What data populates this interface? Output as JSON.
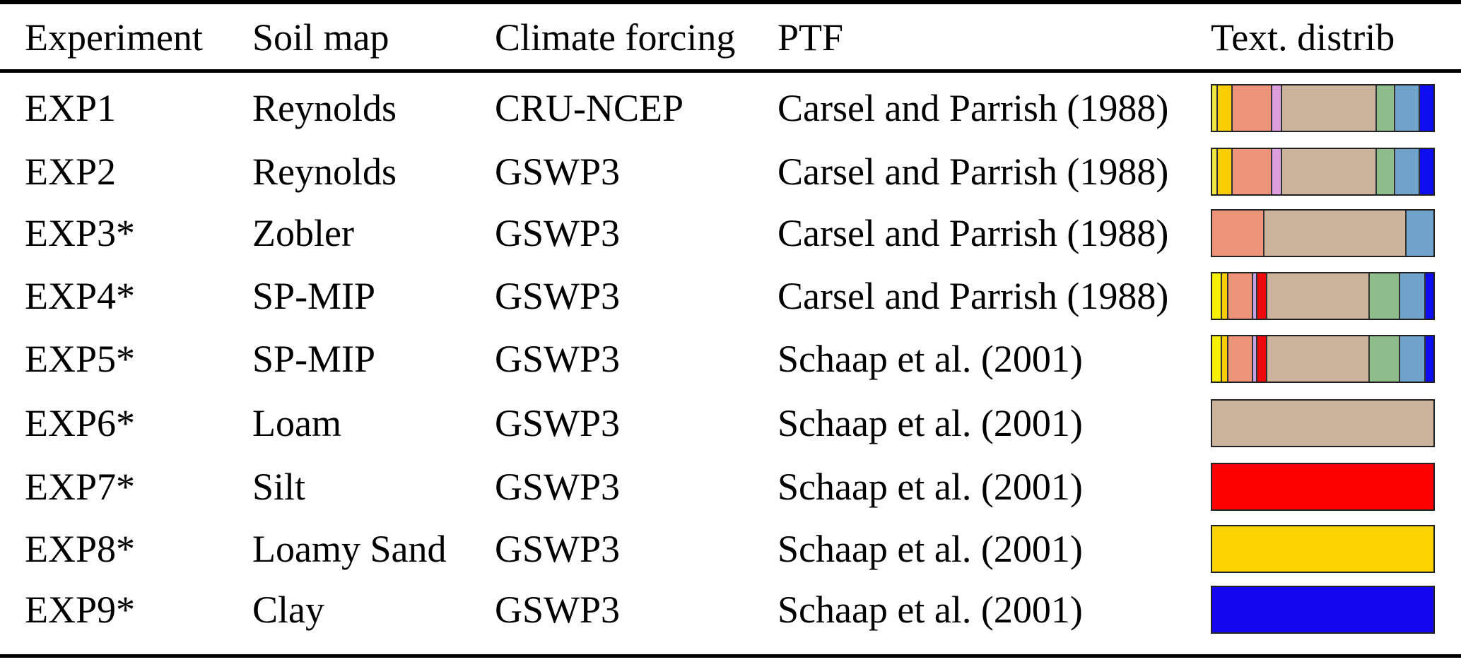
{
  "header": {
    "experiment": "Experiment",
    "soil_map": "Soil map",
    "climate_forcing": "Climate forcing",
    "ptf": "PTF",
    "text_distrib": "Text. distrib"
  },
  "rows": [
    {
      "experiment": "EXP1",
      "soil_map": "Reynolds",
      "climate_forcing": "CRU-NCEP",
      "ptf": "Carsel and Parrish (1988)",
      "texture_bar": [
        {
          "color": "#F0E63C",
          "pct": 2.0
        },
        {
          "color": "#FACC02",
          "pct": 6.3
        },
        {
          "color": "#EC9379",
          "pct": 18.0
        },
        {
          "color": "#DC9EDC",
          "pct": 4.2
        },
        {
          "color": "#CCB49C",
          "pct": 44.2
        },
        {
          "color": "#8FBC8B",
          "pct": 7.9
        },
        {
          "color": "#6FA3CB",
          "pct": 11.1
        },
        {
          "color": "#0D0DF0",
          "pct": 6.3
        }
      ]
    },
    {
      "experiment": "EXP2",
      "soil_map": "Reynolds",
      "climate_forcing": "GSWP3",
      "ptf": "Carsel and Parrish (1988)",
      "texture_bar": [
        {
          "color": "#F0E63C",
          "pct": 2.0
        },
        {
          "color": "#FACC02",
          "pct": 6.3
        },
        {
          "color": "#EC9379",
          "pct": 18.0
        },
        {
          "color": "#DC9EDC",
          "pct": 4.2
        },
        {
          "color": "#CCB49C",
          "pct": 44.2
        },
        {
          "color": "#8FBC8B",
          "pct": 7.9
        },
        {
          "color": "#6FA3CB",
          "pct": 11.1
        },
        {
          "color": "#0D0DF0",
          "pct": 6.3
        }
      ]
    },
    {
      "experiment": "EXP3*",
      "soil_map": "Zobler",
      "climate_forcing": "GSWP3",
      "ptf": "Carsel and Parrish (1988)",
      "texture_bar": [
        {
          "color": "#EC9379",
          "pct": 23.3
        },
        {
          "color": "#CCB49C",
          "pct": 64.5
        },
        {
          "color": "#6FA3CB",
          "pct": 12.2
        }
      ]
    },
    {
      "experiment": "EXP4*",
      "soil_map": "SP-MIP",
      "climate_forcing": "GSWP3",
      "ptf": "Carsel and Parrish (1988)",
      "texture_bar": [
        {
          "color": "#F8EE00",
          "pct": 4.2
        },
        {
          "color": "#FACC02",
          "pct": 2.1
        },
        {
          "color": "#EC9379",
          "pct": 11.1
        },
        {
          "color": "#C2A2E2",
          "pct": 1.6
        },
        {
          "color": "#EE0A0A",
          "pct": 4.0
        },
        {
          "color": "#CCB49C",
          "pct": 48.1
        },
        {
          "color": "#8FBC8B",
          "pct": 13.6
        },
        {
          "color": "#6FA3CB",
          "pct": 11.6
        },
        {
          "color": "#0D0DF0",
          "pct": 3.7
        }
      ]
    },
    {
      "experiment": "EXP5*",
      "soil_map": "SP-MIP",
      "climate_forcing": "GSWP3",
      "ptf": "Schaap et al. (2001)",
      "texture_bar": [
        {
          "color": "#F8EE00",
          "pct": 4.2
        },
        {
          "color": "#FACC02",
          "pct": 2.1
        },
        {
          "color": "#EC9379",
          "pct": 11.1
        },
        {
          "color": "#C2A2E2",
          "pct": 1.6
        },
        {
          "color": "#EE0A0A",
          "pct": 4.0
        },
        {
          "color": "#CCB49C",
          "pct": 48.1
        },
        {
          "color": "#8FBC8B",
          "pct": 13.6
        },
        {
          "color": "#6FA3CB",
          "pct": 11.6
        },
        {
          "color": "#0D0DF0",
          "pct": 3.7
        }
      ]
    },
    {
      "experiment": "EXP6*",
      "soil_map": "Loam",
      "climate_forcing": "GSWP3",
      "ptf": "Schaap et al. (2001)",
      "texture_bar": [
        {
          "color": "#CCB49C",
          "pct": 100
        }
      ]
    },
    {
      "experiment": "EXP7*",
      "soil_map": "Silt",
      "climate_forcing": "GSWP3",
      "ptf": "Schaap et al. (2001)",
      "texture_bar": [
        {
          "color": "#FD0101",
          "pct": 100
        }
      ]
    },
    {
      "experiment": "EXP8*",
      "soil_map": "Loamy Sand",
      "climate_forcing": "GSWP3",
      "ptf": "Schaap et al. (2001)",
      "texture_bar": [
        {
          "color": "#FBD401",
          "pct": 100
        }
      ]
    },
    {
      "experiment": "EXP9*",
      "soil_map": "Clay",
      "climate_forcing": "GSWP3",
      "ptf": "Schaap et al. (2001)",
      "texture_bar": [
        {
          "color": "#1506F0",
          "pct": 100
        }
      ]
    }
  ],
  "colors": {
    "rule": "#000000",
    "bar_border": "#222222",
    "segment_divider": "#333333",
    "background": "#ffffff",
    "text": "#000000"
  }
}
